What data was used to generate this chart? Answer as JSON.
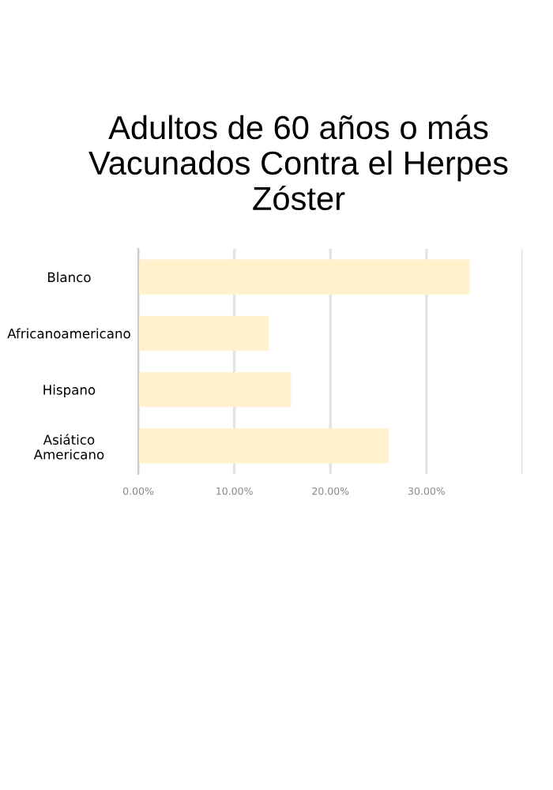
{
  "chart_data": {
    "type": "bar",
    "orientation": "horizontal",
    "title": "Adultos de 60 años o más Vacunados Contra el Herpes Zóster",
    "categories": [
      "Blanco",
      "Africanoamericano",
      "Hispano",
      "Asiático\nAmericano"
    ],
    "values": [
      34.5,
      13.6,
      15.9,
      26.1
    ],
    "color": "#fff2cc",
    "xlim": [
      0,
      40
    ],
    "xticks": [
      {
        "value": 0,
        "label": "0.00%"
      },
      {
        "value": 10,
        "label": "10.00%"
      },
      {
        "value": 20,
        "label": "20.00%"
      },
      {
        "value": 30,
        "label": "30.00%"
      },
      {
        "value": 40,
        "label": null
      }
    ],
    "grid": "x"
  }
}
